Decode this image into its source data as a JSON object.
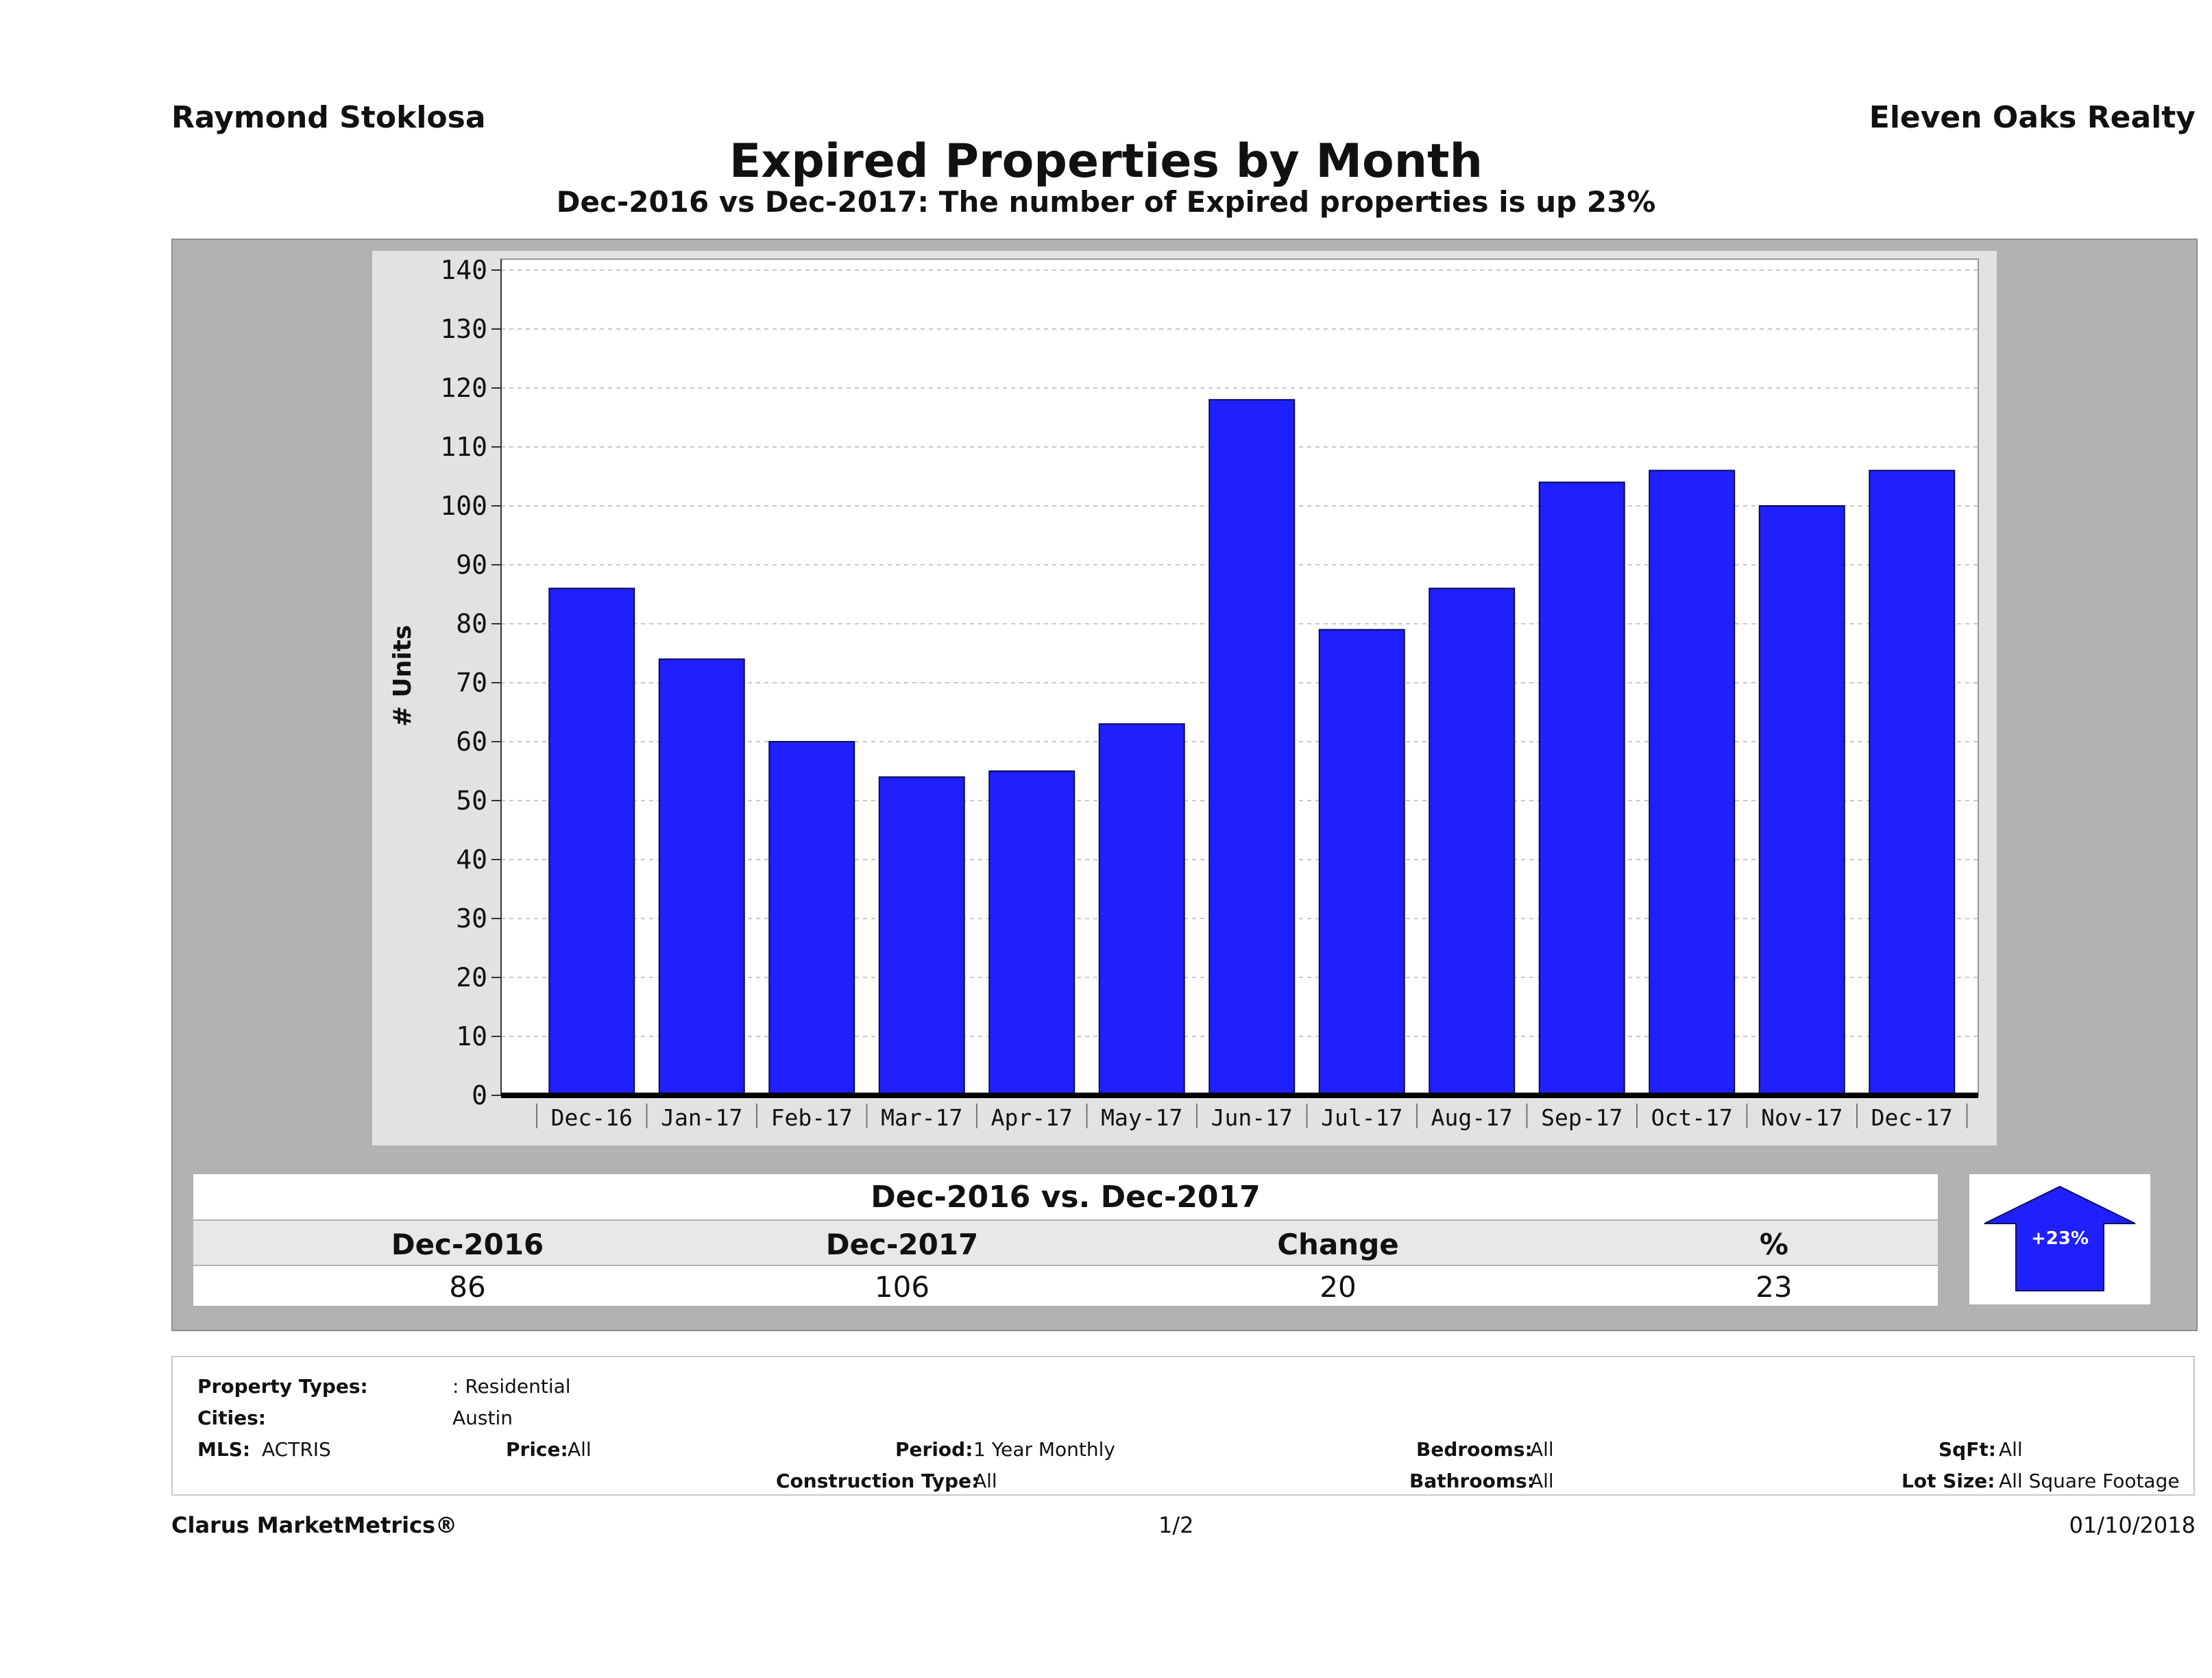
{
  "header": {
    "agent": "Raymond Stoklosa",
    "company": "Eleven Oaks Realty",
    "title": "Expired Properties by Month",
    "subtitle": "Dec-2016 vs Dec-2017: The number of Expired  properties is up 23%"
  },
  "chart_data": {
    "type": "bar",
    "categories": [
      "Dec-16",
      "Jan-17",
      "Feb-17",
      "Mar-17",
      "Apr-17",
      "May-17",
      "Jun-17",
      "Jul-17",
      "Aug-17",
      "Sep-17",
      "Oct-17",
      "Nov-17",
      "Dec-17"
    ],
    "values": [
      86,
      74,
      60,
      54,
      55,
      63,
      118,
      79,
      86,
      104,
      106,
      100,
      106
    ],
    "ylabel": "# Units",
    "ylim": [
      0,
      140
    ],
    "yticks": [
      0,
      10,
      20,
      30,
      40,
      50,
      60,
      70,
      80,
      90,
      100,
      110,
      120,
      130,
      140
    ],
    "grid": true,
    "bar_color": "#2020ff"
  },
  "summary": {
    "heading": "Dec-2016 vs. Dec-2017",
    "columns": [
      {
        "header": "Dec-2016",
        "value": "86"
      },
      {
        "header": "Dec-2017",
        "value": "106"
      },
      {
        "header": "Change",
        "value": "20"
      },
      {
        "header": "%",
        "value": "23"
      }
    ],
    "badge": {
      "text": "+23%",
      "color": "#2020ff"
    }
  },
  "filters": {
    "property_types_label": "Property Types:",
    "property_types_value": ": Residential",
    "cities_label": "Cities:",
    "cities_value": "Austin",
    "mls_label": "MLS:",
    "mls_value": "ACTRIS",
    "price_label": "Price:",
    "price_value": "All",
    "period_label": "Period:",
    "period_value": "1 Year Monthly",
    "construction_label": "Construction Type:",
    "construction_value": "All",
    "bedrooms_label": "Bedrooms:",
    "bedrooms_value": "All",
    "bathrooms_label": "Bathrooms:",
    "bathrooms_value": "All",
    "sqft_label": "SqFt:",
    "sqft_value": "All",
    "lot_label": "Lot Size:",
    "lot_value": "All Square Footage"
  },
  "footer": {
    "brand": "Clarus MarketMetrics®",
    "page": "1/2",
    "date": "01/10/2018"
  }
}
